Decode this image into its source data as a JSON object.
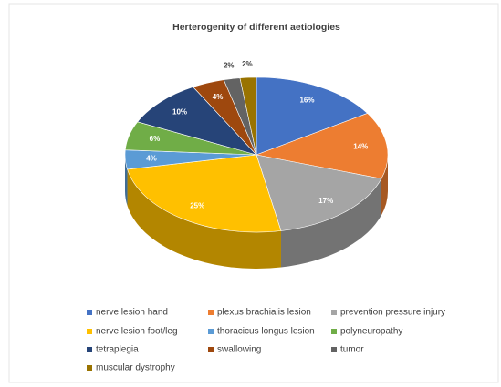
{
  "chart_data": {
    "type": "pie",
    "title": "Herterogenity of different aetiologies",
    "categories": [
      "nerve lesion hand",
      "plexus brachialis lesion",
      "prevention pressure injury",
      "nerve lesion foot/leg",
      "thoracicus longus lesion",
      "polyneuropathy",
      "tetraplegia",
      "swallowing",
      "tumor",
      "muscular dystrophy"
    ],
    "values": [
      16,
      14,
      17,
      25,
      4,
      6,
      10,
      4,
      2,
      2
    ],
    "value_labels": [
      "16%",
      "14%",
      "17%",
      "25%",
      "4%",
      "6%",
      "10%",
      "4%",
      "2%",
      "2%"
    ],
    "colors": [
      "#4472c4",
      "#ed7d31",
      "#a5a5a5",
      "#ffc000",
      "#5b9bd5",
      "#70ad47",
      "#264478",
      "#9e480e",
      "#636363",
      "#997300"
    ],
    "legend": "bottom"
  }
}
